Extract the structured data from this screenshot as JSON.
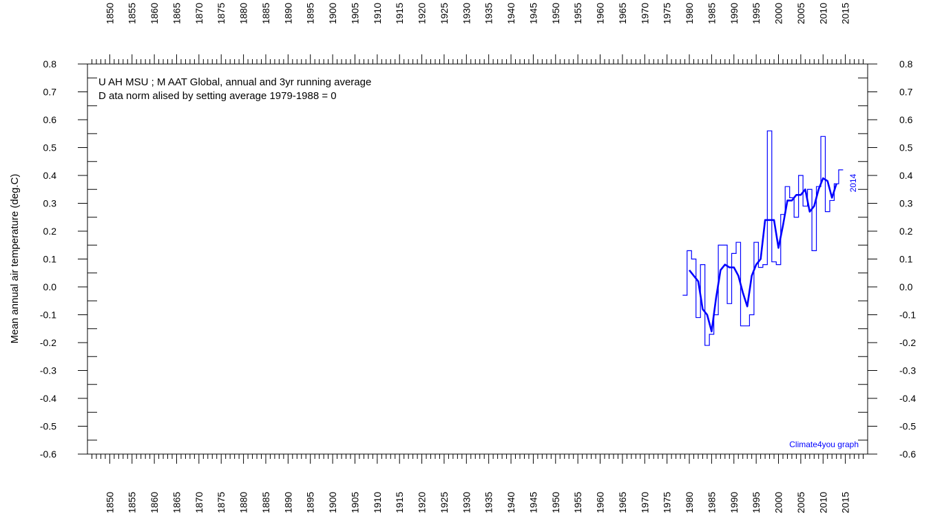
{
  "chart_data": {
    "type": "line",
    "title_lines": [
      "U AH  MSU ; M AAT  Global,  annual and 3yr running average",
      "D ata norm alised by setting average 1979-1988 = 0"
    ],
    "ylabel": "Mean annual air temperature (deg.C)",
    "xlabel": "",
    "xlim": [
      1845,
      2020
    ],
    "ylim": [
      -0.6,
      0.8
    ],
    "x_ticks": [
      1850,
      1855,
      1860,
      1865,
      1870,
      1875,
      1880,
      1885,
      1890,
      1895,
      1900,
      1905,
      1910,
      1915,
      1920,
      1925,
      1930,
      1935,
      1940,
      1945,
      1950,
      1955,
      1960,
      1965,
      1970,
      1975,
      1980,
      1985,
      1990,
      1995,
      2000,
      2005,
      2010,
      2015
    ],
    "y_ticks": [
      "0.8",
      "0.7",
      "0.6",
      "0.5",
      "0.4",
      "0.3",
      "0.2",
      "0.1",
      "0.0",
      "-0.1",
      "-0.2",
      "-0.3",
      "-0.4",
      "-0.5",
      "-0.6"
    ],
    "grid": false,
    "series": [
      {
        "style": "step",
        "color": "#0000ff",
        "x": [
          1979,
          1980,
          1981,
          1982,
          1983,
          1984,
          1985,
          1986,
          1987,
          1988,
          1989,
          1990,
          1991,
          1992,
          1993,
          1994,
          1995,
          1996,
          1997,
          1998,
          1999,
          2000,
          2001,
          2002,
          2003,
          2004,
          2005,
          2006,
          2007,
          2008,
          2009,
          2010,
          2011,
          2012,
          2013,
          2014
        ],
        "y": [
          -0.03,
          0.13,
          0.1,
          -0.11,
          0.08,
          -0.21,
          -0.17,
          -0.1,
          0.15,
          0.15,
          -0.06,
          0.12,
          0.16,
          -0.14,
          -0.14,
          -0.1,
          0.16,
          0.07,
          0.08,
          0.56,
          0.09,
          0.08,
          0.26,
          0.36,
          0.32,
          0.25,
          0.4,
          0.29,
          0.35,
          0.13,
          0.36,
          0.54,
          0.27,
          0.31,
          0.37,
          0.42
        ]
      },
      {
        "style": "line",
        "color": "#0000ff",
        "x": [
          1980,
          1981,
          1982,
          1983,
          1984,
          1985,
          1986,
          1987,
          1988,
          1989,
          1990,
          1991,
          1992,
          1993,
          1994,
          1995,
          1996,
          1997,
          1998,
          1999,
          2000,
          2001,
          2002,
          2003,
          2004,
          2005,
          2006,
          2007,
          2008,
          2009,
          2010,
          2011,
          2012,
          2013
        ],
        "y": [
          0.06,
          0.04,
          0.02,
          -0.08,
          -0.1,
          -0.16,
          -0.04,
          0.06,
          0.08,
          0.07,
          0.07,
          0.04,
          -0.02,
          -0.07,
          0.04,
          0.08,
          0.1,
          0.24,
          0.24,
          0.24,
          0.14,
          0.22,
          0.31,
          0.31,
          0.33,
          0.33,
          0.35,
          0.27,
          0.29,
          0.35,
          0.39,
          0.38,
          0.32,
          0.37
        ]
      }
    ],
    "end_label": "2014",
    "credit": "Climate4you graph"
  }
}
